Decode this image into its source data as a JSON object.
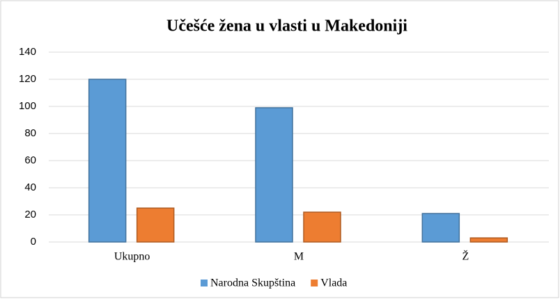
{
  "chart_data": {
    "type": "bar",
    "title": "Učešće žena u vlasti u Makedoniji",
    "categories": [
      "Ukupno",
      "M",
      "Ž"
    ],
    "series": [
      {
        "name": "Narodna Skupština",
        "color": "#5b9bd5",
        "values": [
          120,
          99,
          21
        ]
      },
      {
        "name": "Vlada",
        "color": "#ed7d31",
        "values": [
          25,
          22,
          3
        ]
      }
    ],
    "ylim": [
      0,
      140
    ],
    "yticks": [
      0,
      20,
      40,
      60,
      80,
      100,
      120,
      140
    ],
    "grid": true,
    "legend": "bottom"
  }
}
